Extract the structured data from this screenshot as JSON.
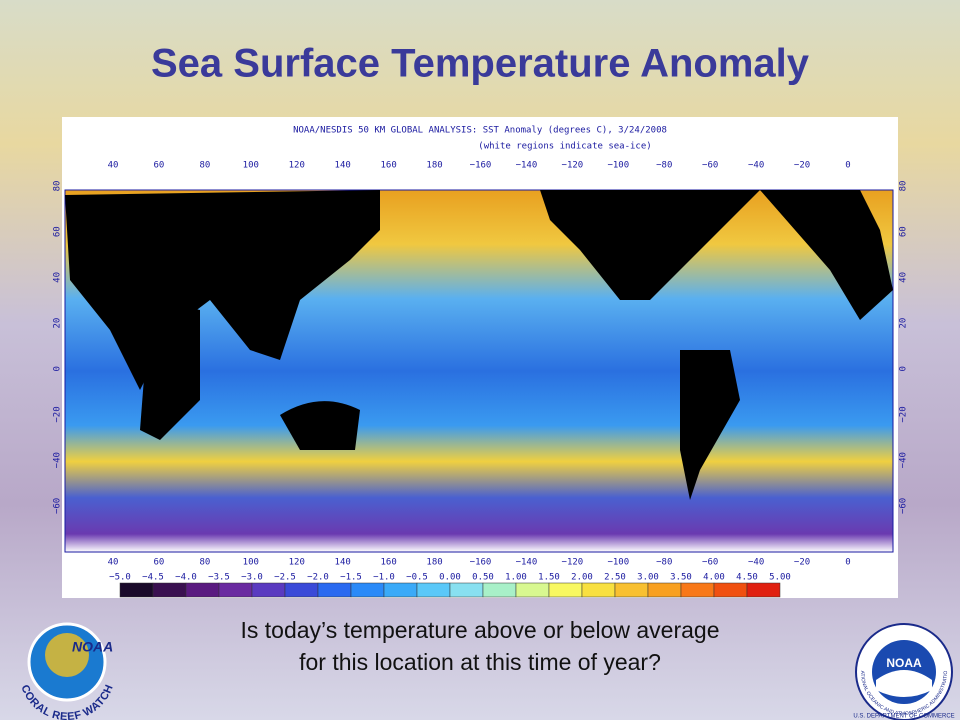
{
  "title": "Sea Surface Temperature Anomaly",
  "map": {
    "title": "NOAA/NESDIS 50 KM GLOBAL ANALYSIS: SST Anomaly (degrees C), 3/24/2008",
    "note": "(white regions indicate sea-ice)",
    "lon_labels": [
      "40",
      "60",
      "80",
      "100",
      "120",
      "140",
      "160",
      "180",
      "−160",
      "−140",
      "−120",
      "−100",
      "−80",
      "−60",
      "−40",
      "−20",
      "0"
    ],
    "lat_labels": [
      "80",
      "60",
      "40",
      "20",
      "0",
      "−20",
      "−40",
      "−60"
    ],
    "colorbar_labels": [
      "−5.0",
      "−4.5",
      "−4.0",
      "−3.5",
      "−3.0",
      "−2.5",
      "−2.0",
      "−1.5",
      "−1.0",
      "−0.5",
      "0.00",
      "0.50",
      "1.00",
      "1.50",
      "2.00",
      "2.50",
      "3.00",
      "3.50",
      "4.00",
      "4.50",
      "5.00"
    ]
  },
  "question": [
    "Is today’s temperature above or below average",
    "for this location at this time of year?"
  ],
  "logos": {
    "left": {
      "name": "NOAA",
      "caption": "CORAL REEF WATCH"
    },
    "right": {
      "name": "NOAA",
      "agency": "NATIONAL OCEANIC AND ATMOSPHERIC ADMINISTRATION",
      "department": "U.S. DEPARTMENT OF COMMERCE"
    }
  }
}
